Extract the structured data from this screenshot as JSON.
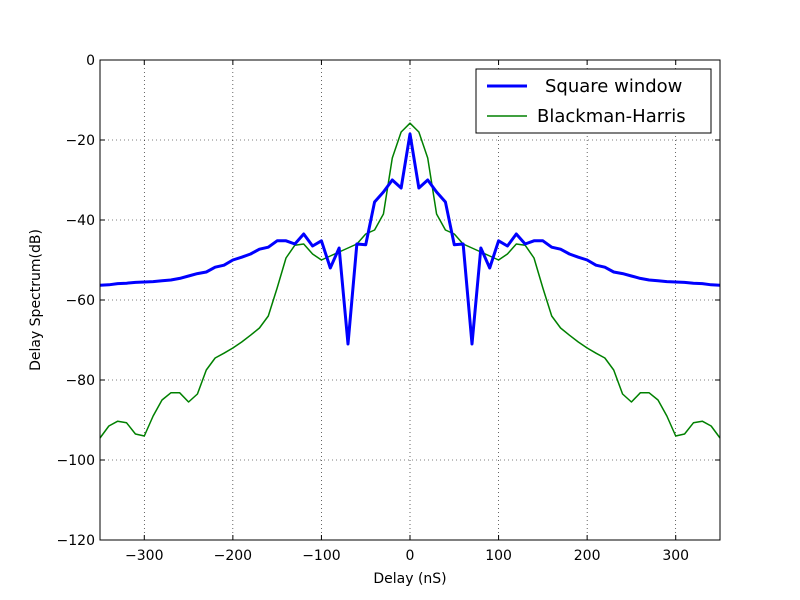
{
  "chart_data": {
    "type": "line",
    "title": "",
    "xlabel": "Delay (nS)",
    "ylabel": "Delay Spectrum(dB)",
    "xlim": [
      -350,
      350
    ],
    "ylim": [
      -120,
      0
    ],
    "x_ticks": [
      -300,
      -200,
      -100,
      0,
      100,
      200,
      300
    ],
    "x_tick_labels": [
      "−300",
      "−200",
      "−100",
      "0",
      "100",
      "200",
      "300"
    ],
    "y_ticks": [
      0,
      -20,
      -40,
      -60,
      -80,
      -100,
      -120
    ],
    "y_tick_labels": [
      "0",
      "−20",
      "−40",
      "−60",
      "−80",
      "−100",
      "−120"
    ],
    "grid": true,
    "legend_position": "top-right",
    "series": [
      {
        "name": "Square window",
        "color": "#0000ff",
        "line_width": "thick",
        "points": [
          [
            -350,
            -56.3
          ],
          [
            -340,
            -56.2
          ],
          [
            -330,
            -55.9
          ],
          [
            -320,
            -55.8
          ],
          [
            -310,
            -55.6
          ],
          [
            -300,
            -55.5
          ],
          [
            -290,
            -55.4
          ],
          [
            -280,
            -55.2
          ],
          [
            -270,
            -55.0
          ],
          [
            -260,
            -54.6
          ],
          [
            -250,
            -54.0
          ],
          [
            -240,
            -53.4
          ],
          [
            -230,
            -53.0
          ],
          [
            -220,
            -51.8
          ],
          [
            -210,
            -51.3
          ],
          [
            -200,
            -50.0
          ],
          [
            -190,
            -49.3
          ],
          [
            -180,
            -48.5
          ],
          [
            -170,
            -47.3
          ],
          [
            -160,
            -46.8
          ],
          [
            -150,
            -45.2
          ],
          [
            -140,
            -45.2
          ],
          [
            -130,
            -46.0
          ],
          [
            -120,
            -43.5
          ],
          [
            -110,
            -46.5
          ],
          [
            -100,
            -45.2
          ],
          [
            -90,
            -52.0
          ],
          [
            -80,
            -47.0
          ],
          [
            -70,
            -71.0
          ],
          [
            -60,
            -46.0
          ],
          [
            -50,
            -46.2
          ],
          [
            -40,
            -35.5
          ],
          [
            -30,
            -33.0
          ],
          [
            -20,
            -30.0
          ],
          [
            -10,
            -32.0
          ],
          [
            0,
            -18.5
          ],
          [
            10,
            -32.0
          ],
          [
            20,
            -30.0
          ],
          [
            30,
            -33.0
          ],
          [
            40,
            -35.5
          ],
          [
            50,
            -46.2
          ],
          [
            60,
            -46.0
          ],
          [
            70,
            -71.0
          ],
          [
            80,
            -47.0
          ],
          [
            90,
            -52.0
          ],
          [
            100,
            -45.2
          ],
          [
            110,
            -46.5
          ],
          [
            120,
            -43.5
          ],
          [
            130,
            -46.0
          ],
          [
            140,
            -45.2
          ],
          [
            150,
            -45.2
          ],
          [
            160,
            -46.8
          ],
          [
            170,
            -47.3
          ],
          [
            180,
            -48.5
          ],
          [
            190,
            -49.3
          ],
          [
            200,
            -50.0
          ],
          [
            210,
            -51.3
          ],
          [
            220,
            -51.8
          ],
          [
            230,
            -53.0
          ],
          [
            240,
            -53.4
          ],
          [
            250,
            -54.0
          ],
          [
            260,
            -54.6
          ],
          [
            270,
            -55.0
          ],
          [
            280,
            -55.2
          ],
          [
            290,
            -55.4
          ],
          [
            300,
            -55.5
          ],
          [
            310,
            -55.6
          ],
          [
            320,
            -55.8
          ],
          [
            330,
            -55.9
          ],
          [
            340,
            -56.2
          ],
          [
            350,
            -56.3
          ]
        ]
      },
      {
        "name": "Blackman-Harris",
        "color": "#008000",
        "line_width": "thin",
        "points": [
          [
            -350,
            -94.5
          ],
          [
            -340,
            -91.5
          ],
          [
            -330,
            -90.3
          ],
          [
            -320,
            -90.7
          ],
          [
            -310,
            -93.5
          ],
          [
            -300,
            -94.0
          ],
          [
            -290,
            -89.0
          ],
          [
            -280,
            -85.0
          ],
          [
            -270,
            -83.2
          ],
          [
            -260,
            -83.2
          ],
          [
            -250,
            -85.5
          ],
          [
            -240,
            -83.5
          ],
          [
            -230,
            -77.5
          ],
          [
            -220,
            -74.5
          ],
          [
            -210,
            -73.3
          ],
          [
            -200,
            -72.0
          ],
          [
            -190,
            -70.5
          ],
          [
            -180,
            -68.8
          ],
          [
            -170,
            -67.0
          ],
          [
            -160,
            -64.0
          ],
          [
            -150,
            -57.0
          ],
          [
            -140,
            -49.5
          ],
          [
            -130,
            -46.3
          ],
          [
            -120,
            -46.0
          ],
          [
            -110,
            -48.5
          ],
          [
            -100,
            -50.0
          ],
          [
            -90,
            -49.0
          ],
          [
            -80,
            -48.0
          ],
          [
            -70,
            -47.0
          ],
          [
            -60,
            -46.0
          ],
          [
            -50,
            -43.5
          ],
          [
            -40,
            -42.5
          ],
          [
            -30,
            -38.5
          ],
          [
            -20,
            -24.5
          ],
          [
            -10,
            -18.0
          ],
          [
            0,
            -15.8
          ],
          [
            10,
            -18.0
          ],
          [
            20,
            -24.5
          ],
          [
            30,
            -38.5
          ],
          [
            40,
            -42.5
          ],
          [
            50,
            -43.5
          ],
          [
            60,
            -46.0
          ],
          [
            70,
            -47.0
          ],
          [
            80,
            -48.0
          ],
          [
            90,
            -49.0
          ],
          [
            100,
            -50.0
          ],
          [
            110,
            -48.5
          ],
          [
            120,
            -46.0
          ],
          [
            130,
            -46.3
          ],
          [
            140,
            -49.5
          ],
          [
            150,
            -57.0
          ],
          [
            160,
            -64.0
          ],
          [
            170,
            -67.0
          ],
          [
            180,
            -68.8
          ],
          [
            190,
            -70.5
          ],
          [
            200,
            -72.0
          ],
          [
            210,
            -73.3
          ],
          [
            220,
            -74.5
          ],
          [
            230,
            -77.5
          ],
          [
            240,
            -83.5
          ],
          [
            250,
            -85.5
          ],
          [
            260,
            -83.2
          ],
          [
            270,
            -83.2
          ],
          [
            280,
            -85.0
          ],
          [
            290,
            -89.0
          ],
          [
            300,
            -94.0
          ],
          [
            310,
            -93.5
          ],
          [
            320,
            -90.7
          ],
          [
            330,
            -90.3
          ],
          [
            340,
            -91.5
          ],
          [
            350,
            -94.5
          ]
        ]
      }
    ]
  }
}
